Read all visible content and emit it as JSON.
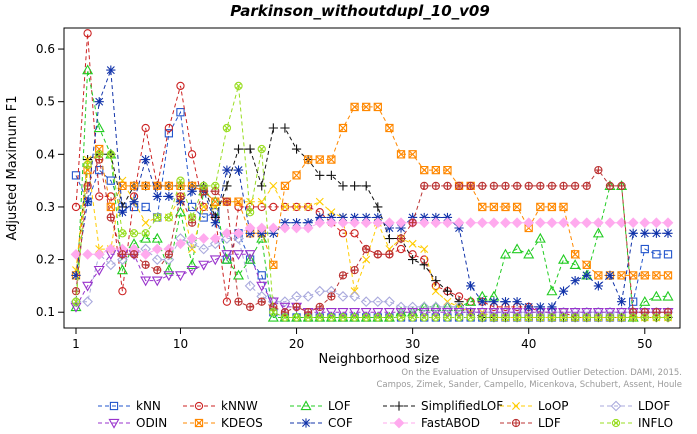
{
  "chart_data": {
    "type": "line",
    "title": "Parkinson_withoutdupl_10_v09",
    "xlabel": "Neighborhood size",
    "ylabel": "Adjusted Maximum F1",
    "xlim": [
      1,
      52
    ],
    "ylim": [
      0.07,
      0.64
    ],
    "xticks": [
      1,
      10,
      20,
      30,
      40,
      50
    ],
    "yticks": [
      0.1,
      0.2,
      0.3,
      0.4,
      0.5,
      0.6
    ],
    "x": [
      1,
      2,
      3,
      4,
      5,
      6,
      7,
      8,
      9,
      10,
      11,
      12,
      13,
      14,
      15,
      16,
      17,
      18,
      19,
      20,
      21,
      22,
      23,
      24,
      25,
      26,
      27,
      28,
      29,
      30,
      31,
      32,
      33,
      34,
      35,
      36,
      37,
      38,
      39,
      40,
      41,
      42,
      43,
      44,
      45,
      46,
      47,
      48,
      49,
      50,
      51,
      52
    ],
    "credit": [
      "Campos, Zimek, Sander, Campello, Micenkova, Schubert, Assent, Houle",
      "On the Evaluation of Unsupervised Outlier Detection. DAMI, 2015."
    ],
    "series": [
      {
        "name": "kNN",
        "color": "#2255cc",
        "marker": "square",
        "values": [
          0.36,
          0.31,
          0.37,
          0.35,
          0.3,
          0.3,
          0.3,
          0.28,
          0.44,
          0.48,
          0.3,
          0.28,
          0.29,
          0.2,
          0.25,
          0.2,
          0.17,
          0.1,
          0.09,
          0.09,
          0.09,
          0.09,
          0.09,
          0.09,
          0.09,
          0.09,
          0.09,
          0.09,
          0.09,
          0.09,
          0.09,
          0.09,
          0.09,
          0.09,
          0.09,
          0.09,
          0.09,
          0.09,
          0.09,
          0.09,
          0.09,
          0.09,
          0.09,
          0.09,
          0.09,
          0.09,
          0.09,
          0.09,
          0.12,
          0.22,
          0.21,
          0.21
        ]
      },
      {
        "name": "kNNW",
        "color": "#cc2222",
        "marker": "circle",
        "values": [
          0.3,
          0.63,
          0.32,
          0.32,
          0.14,
          0.32,
          0.45,
          0.34,
          0.45,
          0.53,
          0.4,
          0.3,
          0.28,
          0.12,
          0.3,
          0.3,
          0.3,
          0.3,
          0.3,
          0.3,
          0.3,
          0.29,
          0.27,
          0.25,
          0.25,
          0.22,
          0.21,
          0.21,
          0.22,
          0.21,
          0.2,
          0.15,
          0.14,
          0.13,
          0.12,
          0.12,
          0.11,
          0.11,
          0.11,
          0.11,
          0.1,
          0.1,
          0.1,
          0.09,
          0.09,
          0.09,
          0.09,
          0.09,
          0.09,
          0.09,
          0.09,
          0.09
        ]
      },
      {
        "name": "LOF",
        "color": "#22cc22",
        "marker": "triangle",
        "values": [
          0.11,
          0.56,
          0.45,
          0.4,
          0.18,
          0.23,
          0.24,
          0.24,
          0.18,
          0.29,
          0.19,
          0.33,
          0.31,
          0.2,
          0.17,
          0.2,
          0.24,
          0.09,
          0.09,
          0.09,
          0.09,
          0.09,
          0.09,
          0.09,
          0.09,
          0.09,
          0.09,
          0.09,
          0.1,
          0.1,
          0.11,
          0.11,
          0.11,
          0.11,
          0.12,
          0.13,
          0.13,
          0.21,
          0.22,
          0.21,
          0.24,
          0.14,
          0.2,
          0.19,
          0.17,
          0.25,
          0.34,
          0.34,
          0.09,
          0.12,
          0.13,
          0.13
        ]
      },
      {
        "name": "SimplifiedLOF",
        "color": "#111111",
        "marker": "plus",
        "values": [
          0.17,
          0.39,
          0.4,
          0.4,
          0.3,
          0.34,
          0.34,
          0.34,
          0.34,
          0.34,
          0.34,
          0.34,
          0.28,
          0.34,
          0.41,
          0.41,
          0.34,
          0.45,
          0.45,
          0.41,
          0.39,
          0.36,
          0.36,
          0.34,
          0.34,
          0.34,
          0.3,
          0.24,
          0.24,
          0.2,
          0.19,
          0.16,
          0.14,
          0.12,
          0.1,
          0.09,
          0.09,
          0.09,
          0.09,
          0.09,
          0.09,
          0.09,
          0.09,
          0.09,
          0.09,
          0.09,
          0.09,
          0.09,
          0.09,
          0.09,
          0.09,
          0.09
        ]
      },
      {
        "name": "LoOP",
        "color": "#ffcc00",
        "marker": "x",
        "values": [
          0.18,
          0.39,
          0.22,
          0.22,
          0.35,
          0.31,
          0.27,
          0.28,
          0.28,
          0.32,
          0.22,
          0.3,
          0.3,
          0.31,
          0.31,
          0.31,
          0.31,
          0.34,
          0.3,
          0.3,
          0.3,
          0.31,
          0.29,
          0.28,
          0.14,
          0.2,
          0.27,
          0.22,
          0.24,
          0.23,
          0.22,
          0.14,
          0.12,
          0.11,
          0.1,
          0.1,
          0.09,
          0.09,
          0.09,
          0.09,
          0.09,
          0.09,
          0.09,
          0.09,
          0.09,
          0.09,
          0.09,
          0.09,
          0.09,
          0.09,
          0.09,
          0.09
        ]
      },
      {
        "name": "LDOF",
        "color": "#aaaadd",
        "marker": "diamond",
        "values": [
          0.12,
          0.12,
          0.21,
          0.19,
          0.2,
          0.21,
          0.22,
          0.2,
          0.2,
          0.24,
          0.23,
          0.22,
          0.23,
          0.24,
          0.24,
          0.15,
          0.13,
          0.12,
          0.12,
          0.13,
          0.13,
          0.14,
          0.14,
          0.13,
          0.13,
          0.12,
          0.12,
          0.12,
          0.11,
          0.11,
          0.11,
          0.11,
          0.11,
          0.11,
          0.1,
          0.1,
          0.1,
          0.1,
          0.1,
          0.1,
          0.1,
          0.1,
          0.1,
          0.1,
          0.1,
          0.1,
          0.1,
          0.1,
          0.1,
          0.1,
          0.1,
          0.1
        ]
      },
      {
        "name": "ODIN",
        "color": "#9933cc",
        "marker": "triangle-down",
        "values": [
          0.11,
          0.15,
          0.18,
          0.21,
          0.21,
          0.21,
          0.16,
          0.16,
          0.17,
          0.17,
          0.18,
          0.19,
          0.2,
          0.21,
          0.21,
          0.21,
          0.15,
          0.12,
          0.11,
          0.11,
          0.1,
          0.1,
          0.1,
          0.1,
          0.1,
          0.1,
          0.1,
          0.1,
          0.1,
          0.1,
          0.1,
          0.1,
          0.1,
          0.1,
          0.1,
          0.1,
          0.1,
          0.1,
          0.1,
          0.1,
          0.1,
          0.1,
          0.1,
          0.1,
          0.1,
          0.1,
          0.1,
          0.1,
          0.1,
          0.1,
          0.1,
          0.1
        ]
      },
      {
        "name": "KDEOS",
        "color": "#ff8800",
        "marker": "square-x",
        "values": [
          0.17,
          0.37,
          0.41,
          0.3,
          0.34,
          0.34,
          0.34,
          0.34,
          0.34,
          0.34,
          0.34,
          0.33,
          0.31,
          0.31,
          0.31,
          0.25,
          0.25,
          0.19,
          0.34,
          0.36,
          0.39,
          0.39,
          0.39,
          0.45,
          0.49,
          0.49,
          0.49,
          0.45,
          0.4,
          0.4,
          0.37,
          0.37,
          0.37,
          0.34,
          0.34,
          0.3,
          0.3,
          0.3,
          0.3,
          0.26,
          0.3,
          0.3,
          0.3,
          0.21,
          0.19,
          0.17,
          0.17,
          0.17,
          0.17,
          0.17,
          0.17,
          0.17
        ]
      },
      {
        "name": "COF",
        "color": "#1133aa",
        "marker": "asterisk",
        "values": [
          0.17,
          0.31,
          0.5,
          0.56,
          0.29,
          0.31,
          0.39,
          0.32,
          0.32,
          0.31,
          0.33,
          0.33,
          0.27,
          0.37,
          0.37,
          0.25,
          0.25,
          0.25,
          0.27,
          0.27,
          0.27,
          0.28,
          0.28,
          0.28,
          0.28,
          0.28,
          0.28,
          0.26,
          0.26,
          0.28,
          0.28,
          0.28,
          0.28,
          0.26,
          0.15,
          0.12,
          0.12,
          0.12,
          0.12,
          0.11,
          0.11,
          0.11,
          0.14,
          0.16,
          0.17,
          0.15,
          0.17,
          0.12,
          0.25,
          0.25,
          0.25,
          0.25
        ]
      },
      {
        "name": "FastABOD",
        "color": "#ffaaee",
        "marker": "diamond-solid",
        "values": [
          0.21,
          0.21,
          0.21,
          0.22,
          0.22,
          0.22,
          0.21,
          0.22,
          0.22,
          0.23,
          0.24,
          0.24,
          0.24,
          0.25,
          0.25,
          0.26,
          0.26,
          0.26,
          0.26,
          0.26,
          0.26,
          0.27,
          0.27,
          0.27,
          0.27,
          0.27,
          0.27,
          0.27,
          0.27,
          0.27,
          0.27,
          0.27,
          0.27,
          0.27,
          0.27,
          0.27,
          0.27,
          0.27,
          0.27,
          0.27,
          0.27,
          0.27,
          0.27,
          0.27,
          0.27,
          0.27,
          0.27,
          0.27,
          0.27,
          0.27,
          0.27,
          0.27
        ]
      },
      {
        "name": "LDF",
        "color": "#bb3333",
        "marker": "circle-plus",
        "values": [
          0.14,
          0.34,
          0.39,
          0.28,
          0.21,
          0.21,
          0.19,
          0.18,
          0.21,
          0.32,
          0.27,
          0.33,
          0.33,
          0.31,
          0.12,
          0.11,
          0.12,
          0.11,
          0.1,
          0.11,
          0.1,
          0.11,
          0.13,
          0.17,
          0.18,
          0.22,
          0.21,
          0.21,
          0.24,
          0.27,
          0.34,
          0.34,
          0.34,
          0.34,
          0.34,
          0.34,
          0.34,
          0.34,
          0.34,
          0.34,
          0.34,
          0.34,
          0.34,
          0.34,
          0.34,
          0.37,
          0.34,
          0.34,
          0.1,
          0.1,
          0.1,
          0.1
        ]
      },
      {
        "name": "INFLO",
        "color": "#99dd22",
        "marker": "circle-x",
        "values": [
          0.12,
          0.38,
          0.4,
          0.4,
          0.25,
          0.25,
          0.25,
          0.28,
          0.28,
          0.35,
          0.28,
          0.34,
          0.34,
          0.45,
          0.53,
          0.29,
          0.41,
          0.1,
          0.09,
          0.09,
          0.09,
          0.09,
          0.09,
          0.09,
          0.09,
          0.09,
          0.09,
          0.09,
          0.09,
          0.09,
          0.09,
          0.09,
          0.09,
          0.09,
          0.09,
          0.09,
          0.09,
          0.09,
          0.09,
          0.09,
          0.09,
          0.09,
          0.09,
          0.09,
          0.09,
          0.09,
          0.09,
          0.09,
          0.09,
          0.09,
          0.09,
          0.09
        ]
      }
    ],
    "legend_position": "bottom",
    "legend_columns": 6,
    "grid": false
  }
}
